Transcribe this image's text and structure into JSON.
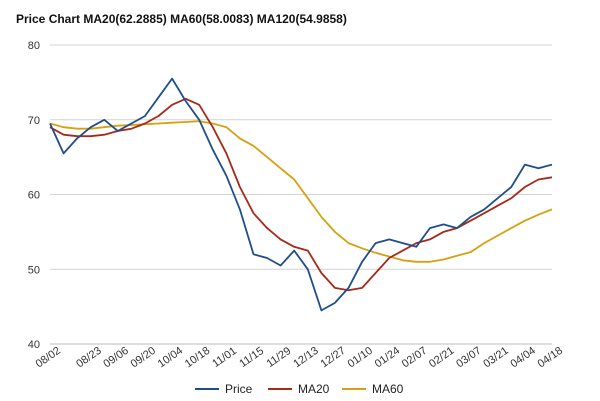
{
  "chart_data": {
    "type": "line",
    "title": "Price Chart MA20(62.2885) MA60(58.0083) MA120(54.9858)",
    "xlabel": "",
    "ylabel": "",
    "ylim": [
      40,
      80
    ],
    "yticks": [
      "40",
      "50",
      "60",
      "70",
      "80"
    ],
    "grid": true,
    "legend_position": "bottom",
    "x": [
      "08/02",
      "08/09",
      "08/16",
      "08/23",
      "08/30",
      "09/06",
      "09/13",
      "09/20",
      "09/27",
      "10/04",
      "10/11",
      "10/18",
      "10/25",
      "11/01",
      "11/08",
      "11/15",
      "11/22",
      "11/29",
      "12/06",
      "12/13",
      "12/20",
      "12/27",
      "01/03",
      "01/10",
      "01/17",
      "01/24",
      "01/31",
      "02/07",
      "02/14",
      "02/21",
      "02/28",
      "03/07",
      "03/14",
      "03/21",
      "03/28",
      "04/04",
      "04/11",
      "04/18"
    ],
    "x_tick_labels": [
      "08/02",
      "08/23",
      "09/06",
      "09/20",
      "10/04",
      "10/18",
      "11/01",
      "11/15",
      "11/29",
      "12/13",
      "12/27",
      "01/10",
      "01/24",
      "02/07",
      "02/21",
      "03/07",
      "03/21",
      "04/04",
      "04/18"
    ],
    "series": [
      {
        "name": "Price",
        "color": "#1f4e8c",
        "values": [
          69.5,
          65.5,
          67.5,
          69.0,
          70.0,
          68.5,
          69.5,
          70.5,
          73.0,
          75.5,
          72.5,
          70.0,
          66.0,
          62.5,
          58.0,
          52.0,
          51.5,
          50.5,
          52.5,
          50.0,
          44.5,
          45.5,
          47.5,
          51.0,
          53.5,
          54.0,
          53.5,
          53.0,
          55.5,
          56.0,
          55.5,
          57.0,
          58.0,
          59.5,
          61.0,
          64.0,
          63.5,
          64.0
        ]
      },
      {
        "name": "MA20",
        "color": "#a52a1a",
        "values": [
          69.0,
          68.0,
          67.8,
          67.8,
          68.0,
          68.5,
          68.8,
          69.5,
          70.5,
          72.0,
          72.8,
          72.0,
          69.0,
          65.5,
          61.0,
          57.5,
          55.5,
          54.0,
          53.0,
          52.5,
          49.5,
          47.5,
          47.2,
          47.5,
          49.5,
          51.5,
          52.5,
          53.5,
          54.0,
          55.0,
          55.5,
          56.5,
          57.5,
          58.5,
          59.5,
          61.0,
          62.0,
          62.3
        ]
      },
      {
        "name": "MA60",
        "color": "#d6a010",
        "values": [
          69.5,
          69.0,
          68.8,
          68.8,
          69.0,
          69.2,
          69.3,
          69.4,
          69.5,
          69.6,
          69.7,
          69.8,
          69.5,
          69.0,
          67.5,
          66.5,
          65.0,
          63.5,
          62.0,
          59.5,
          57.0,
          55.0,
          53.5,
          52.8,
          52.2,
          51.7,
          51.2,
          51.0,
          51.0,
          51.3,
          51.8,
          52.3,
          53.5,
          54.5,
          55.5,
          56.5,
          57.3,
          58.0
        ]
      }
    ]
  }
}
